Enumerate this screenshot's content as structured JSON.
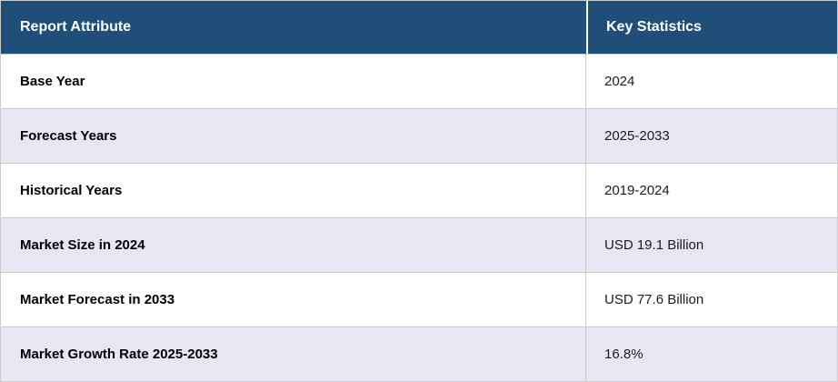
{
  "chart_data": {
    "type": "table",
    "title": "",
    "columns": [
      "Report Attribute",
      "Key Statistics"
    ],
    "rows": [
      [
        "Base Year",
        "2024"
      ],
      [
        "Forecast Years",
        "2025-2033"
      ],
      [
        "Historical Years",
        "2019-2024"
      ],
      [
        "Market Size in 2024",
        "USD 19.1 Billion"
      ],
      [
        "Market Forecast in 2033",
        "USD 77.6 Billion"
      ],
      [
        "Market Growth Rate 2025-2033",
        "16.8%"
      ]
    ]
  },
  "theme": {
    "header-bg": "#1F4E79",
    "header-text": "#FFFFFF",
    "row-bg": "#FFFFFF",
    "row-alt-bg": "#E6E7F2",
    "border-color": "#CBCBCB",
    "attr-text": "#000000",
    "value-text": "#1C1C1C"
  }
}
